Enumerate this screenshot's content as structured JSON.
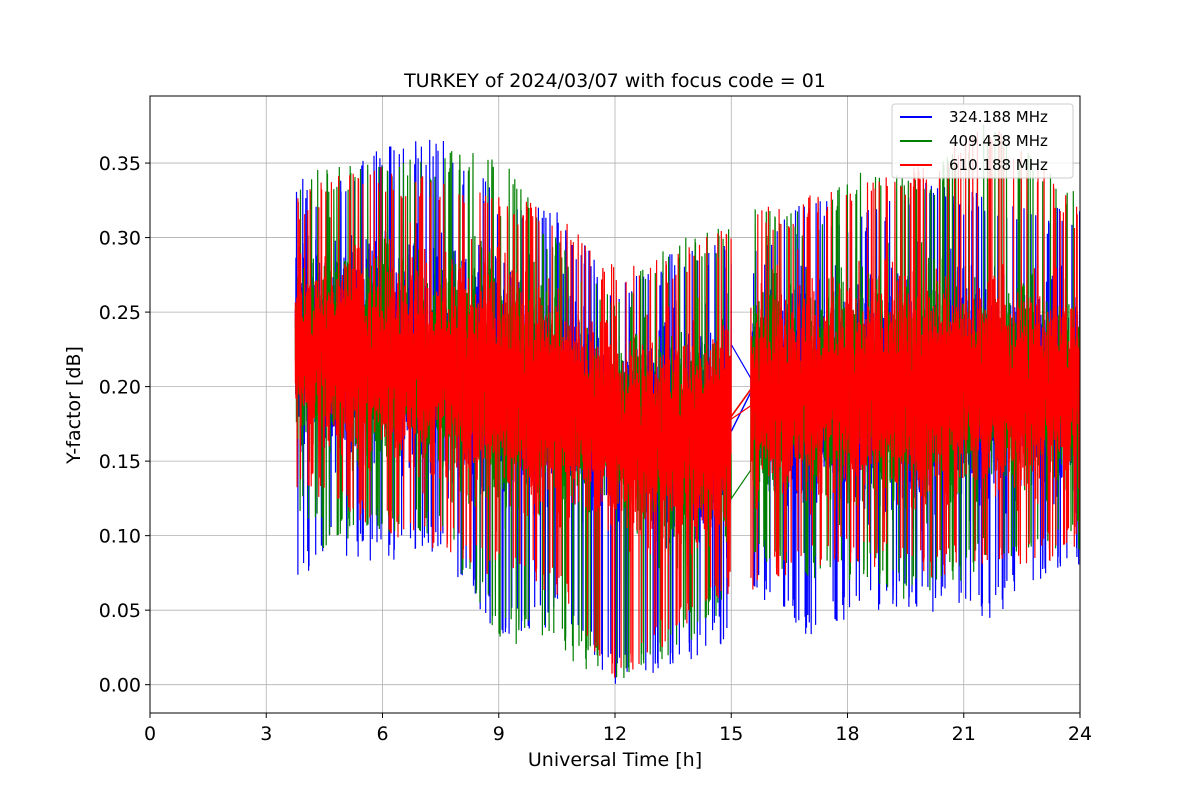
{
  "chart_data": {
    "type": "line",
    "title": "TURKEY of 2024/03/07 with focus code = 01",
    "xlabel": "Universal Time [h]",
    "ylabel": "Y-factor [dB]",
    "xlim": [
      0,
      24
    ],
    "ylim": [
      -0.019,
      0.395
    ],
    "x_ticks": [
      0,
      3,
      6,
      9,
      12,
      15,
      18,
      21,
      24
    ],
    "x_tick_labels": [
      "0",
      "3",
      "6",
      "9",
      "12",
      "15",
      "18",
      "21",
      "24"
    ],
    "y_ticks": [
      0.0,
      0.05,
      0.1,
      0.15,
      0.2,
      0.25,
      0.3,
      0.35
    ],
    "y_tick_labels": [
      "0.00",
      "0.05",
      "0.10",
      "0.15",
      "0.20",
      "0.25",
      "0.30",
      "0.35"
    ],
    "grid": true,
    "legend_position": "top-right",
    "data_gap": [
      15.0,
      15.5
    ],
    "series": [
      {
        "name": "324.188 MHz",
        "color": "#0000ff",
        "x": [
          3.75,
          4.5,
          6.0,
          7.5,
          9.0,
          10.5,
          12.0,
          13.5,
          15.0,
          15.5,
          17.0,
          18.5,
          20.0,
          21.5,
          23.0,
          24.0
        ],
        "y_mean": [
          0.225,
          0.225,
          0.222,
          0.215,
          0.205,
          0.19,
          0.172,
          0.165,
          0.17,
          0.196,
          0.195,
          0.196,
          0.195,
          0.196,
          0.196,
          0.196
        ],
        "y_min": [
          0.06,
          0.09,
          0.08,
          0.09,
          0.03,
          0.04,
          0.0,
          0.01,
          0.03,
          0.06,
          0.03,
          0.05,
          0.05,
          0.04,
          0.07,
          0.08
        ],
        "y_max": [
          0.34,
          0.34,
          0.36,
          0.37,
          0.33,
          0.32,
          0.27,
          0.29,
          0.3,
          0.29,
          0.33,
          0.32,
          0.34,
          0.33,
          0.32,
          0.32
        ]
      },
      {
        "name": "409.438 MHz",
        "color": "#008000",
        "x": [
          3.75,
          4.5,
          6.0,
          7.5,
          9.0,
          10.5,
          12.0,
          13.5,
          15.0,
          15.5,
          17.0,
          18.5,
          20.0,
          21.5,
          23.0,
          24.0
        ],
        "y_mean": [
          0.222,
          0.222,
          0.22,
          0.213,
          0.203,
          0.188,
          0.17,
          0.163,
          0.168,
          0.198,
          0.198,
          0.199,
          0.198,
          0.199,
          0.198,
          0.198
        ],
        "y_min": [
          0.12,
          0.09,
          0.1,
          0.1,
          0.03,
          0.02,
          0.0,
          0.02,
          0.05,
          0.08,
          0.07,
          0.07,
          0.05,
          0.08,
          0.09,
          0.09
        ],
        "y_max": [
          0.34,
          0.35,
          0.35,
          0.36,
          0.36,
          0.3,
          0.26,
          0.3,
          0.31,
          0.32,
          0.32,
          0.35,
          0.34,
          0.38,
          0.35,
          0.33
        ]
      },
      {
        "name": "610.188 MHz",
        "color": "#ff0000",
        "x": [
          3.75,
          4.5,
          6.0,
          7.5,
          9.0,
          10.5,
          12.0,
          13.5,
          15.0,
          15.5,
          17.0,
          18.5,
          20.0,
          21.5,
          23.0,
          24.0
        ],
        "y_mean": [
          0.222,
          0.222,
          0.22,
          0.213,
          0.203,
          0.188,
          0.17,
          0.163,
          0.168,
          0.198,
          0.198,
          0.199,
          0.198,
          0.199,
          0.198,
          0.198
        ],
        "y_min": [
          0.13,
          0.12,
          0.1,
          0.09,
          0.07,
          0.06,
          0.0,
          0.03,
          0.06,
          0.06,
          0.08,
          0.08,
          0.07,
          0.08,
          0.08,
          0.09
        ],
        "y_max": [
          0.33,
          0.34,
          0.35,
          0.34,
          0.33,
          0.32,
          0.28,
          0.29,
          0.31,
          0.32,
          0.33,
          0.34,
          0.35,
          0.38,
          0.35,
          0.32
        ]
      }
    ]
  }
}
